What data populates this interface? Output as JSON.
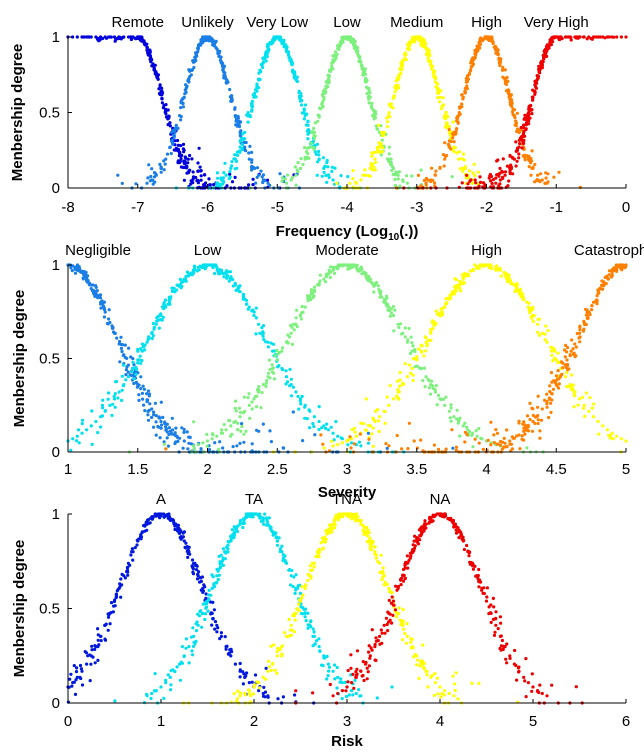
{
  "chart_data": [
    {
      "type": "scatter",
      "xlabel": "Frequency (Log10(.))",
      "xlabel_main": "Frequency (Log",
      "xlabel_sub": "10",
      "xlabel_tail": "(.))",
      "ylabel": "Menbership degree",
      "xlim": [
        -8,
        0
      ],
      "ylim": [
        0,
        1
      ],
      "xticks": [
        -8,
        -7,
        -6,
        -5,
        -4,
        -3,
        -2,
        -1,
        0
      ],
      "yticks": [
        0,
        0.5,
        1
      ],
      "grid": false,
      "series": [
        {
          "name": "Remote",
          "shape": "left-shoulder",
          "center": -6.45,
          "plateau_end": -7.0,
          "sigma": 0.35,
          "color": "#0000dd"
        },
        {
          "name": "Unlikely",
          "shape": "gaussian",
          "center": -6.0,
          "sigma": 0.33,
          "color": "#1a7ee6"
        },
        {
          "name": "Very Low",
          "shape": "gaussian",
          "center": -5.0,
          "sigma": 0.33,
          "color": "#00e0ee"
        },
        {
          "name": "Low",
          "shape": "gaussian",
          "center": -4.0,
          "sigma": 0.33,
          "color": "#7df07d"
        },
        {
          "name": "Medium",
          "shape": "gaussian",
          "center": -3.0,
          "sigma": 0.33,
          "color": "#ffff00"
        },
        {
          "name": "High",
          "shape": "gaussian",
          "center": -2.0,
          "sigma": 0.33,
          "color": "#ff8000"
        },
        {
          "name": "Very High",
          "shape": "right-shoulder",
          "center": -1.55,
          "plateau_start": -1.0,
          "sigma": 0.33,
          "color": "#ee0000"
        }
      ]
    },
    {
      "type": "scatter",
      "xlabel": "Severity",
      "ylabel": "Menbership degree",
      "xlim": [
        1,
        5
      ],
      "ylim": [
        0,
        1
      ],
      "xticks": [
        1,
        1.5,
        2,
        2.5,
        3,
        3.5,
        4,
        4.5,
        5
      ],
      "yticks": [
        0,
        0.5,
        1
      ],
      "grid": false,
      "series": [
        {
          "name": "Negligible",
          "shape": "left-shoulder",
          "center": 1.45,
          "plateau_end": 1.0,
          "sigma": 0.35,
          "color": "#1a7ee6"
        },
        {
          "name": "Low",
          "shape": "gaussian",
          "center": 2.0,
          "sigma": 0.42,
          "color": "#00e0ee"
        },
        {
          "name": "Moderate",
          "shape": "gaussian",
          "center": 3.0,
          "sigma": 0.42,
          "color": "#7df07d"
        },
        {
          "name": "High",
          "shape": "gaussian",
          "center": 4.0,
          "sigma": 0.42,
          "color": "#ffff00"
        },
        {
          "name": "Catastrophic",
          "shape": "right-shoulder",
          "center": 4.5,
          "plateau_start": 5.0,
          "sigma": 0.35,
          "color": "#ff8000"
        }
      ]
    },
    {
      "type": "scatter",
      "xlabel": "Risk",
      "ylabel": "Menbership degree",
      "xlim": [
        0,
        6
      ],
      "ylim": [
        0,
        1
      ],
      "xticks": [
        0,
        1,
        2,
        3,
        4,
        5,
        6
      ],
      "yticks": [
        0,
        0.5,
        1
      ],
      "grid": false,
      "series": [
        {
          "name": "A",
          "shape": "gaussian",
          "center": 1.0,
          "sigma": 0.45,
          "color": "#0018dd"
        },
        {
          "name": "TA",
          "shape": "gaussian",
          "center": 2.0,
          "sigma": 0.45,
          "color": "#00e0ee"
        },
        {
          "name": "TNA",
          "shape": "gaussian",
          "center": 3.0,
          "sigma": 0.45,
          "color": "#ffff00"
        },
        {
          "name": "NA",
          "shape": "gaussian",
          "center": 4.0,
          "sigma": 0.45,
          "color": "#ee0000"
        }
      ]
    }
  ]
}
